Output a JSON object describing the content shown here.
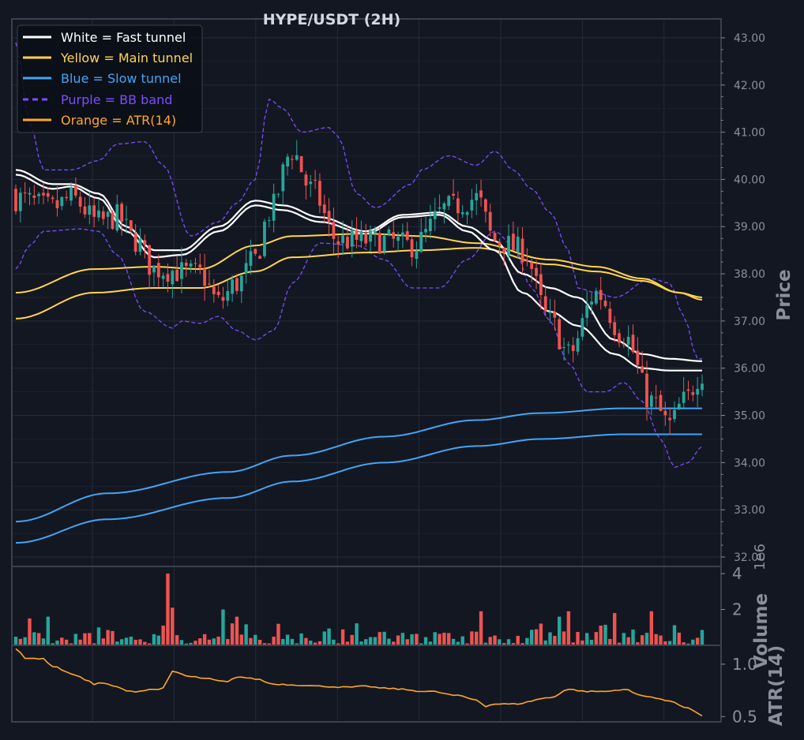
{
  "title": "HYPE/USDT (2H)",
  "colors": {
    "background": "#131722",
    "panel": "#131722",
    "grid": "#262b38",
    "axis_frame": "#3b4050",
    "tick_text": "#8a8f9c",
    "axis_label": "#8a8f9c",
    "title": "#d5d8e0",
    "up_candle": "#26a69a",
    "down_candle": "#ef5350",
    "fast": "#ffffff",
    "main": "#ffd54f",
    "slow": "#42a5f5",
    "bb": "#7c4dff",
    "atr": "#ffa726"
  },
  "legend": [
    {
      "label": "White = Fast tunnel",
      "color": "#ffffff",
      "style": "solid"
    },
    {
      "label": "Yellow = Main tunnel",
      "color": "#ffd54f",
      "style": "solid"
    },
    {
      "label": "Blue = Slow tunnel",
      "color": "#42a5f5",
      "style": "solid"
    },
    {
      "label": "Purple = BB band",
      "color": "#7c4dff",
      "style": "dashed"
    },
    {
      "label": "Orange = ATR(14)",
      "color": "#ffa726",
      "style": "solid"
    }
  ],
  "chart_data": {
    "type": "candlestick",
    "title": "HYPE/USDT (2H)",
    "legend_position": "top-left",
    "grid": true,
    "candle_count": 150,
    "price_panel": {
      "ylabel": "Price",
      "ylim": [
        31.8,
        43.4
      ],
      "ticks": [
        "32.00",
        "33.00",
        "34.00",
        "35.00",
        "36.00",
        "37.00",
        "38.00",
        "39.00",
        "40.00",
        "41.00",
        "42.00",
        "43.00"
      ],
      "close_anchors": [
        [
          0,
          39.6
        ],
        [
          8,
          39.4
        ],
        [
          12,
          39.6
        ],
        [
          18,
          39.1
        ],
        [
          22,
          39.2
        ],
        [
          26,
          38.7
        ],
        [
          30,
          38.1
        ],
        [
          40,
          38.0
        ],
        [
          44,
          37.4
        ],
        [
          48,
          37.8
        ],
        [
          52,
          38.3
        ],
        [
          55,
          39.3
        ],
        [
          60,
          40.6
        ],
        [
          64,
          39.8
        ],
        [
          70,
          38.7
        ],
        [
          80,
          38.7
        ],
        [
          86,
          38.6
        ],
        [
          94,
          39.4
        ],
        [
          100,
          39.6
        ],
        [
          104,
          38.7
        ],
        [
          110,
          38.5
        ],
        [
          116,
          37.0
        ],
        [
          120,
          36.3
        ],
        [
          126,
          37.6
        ],
        [
          132,
          36.7
        ],
        [
          138,
          35.3
        ],
        [
          142,
          34.8
        ],
        [
          145,
          35.3
        ],
        [
          149,
          35.9
        ]
      ],
      "fast_upper": [
        [
          0,
          40.2
        ],
        [
          8,
          39.9
        ],
        [
          12,
          39.9
        ],
        [
          18,
          39.7
        ],
        [
          24,
          39.0
        ],
        [
          30,
          38.5
        ],
        [
          36,
          38.5
        ],
        [
          44,
          39.0
        ],
        [
          52,
          39.55
        ],
        [
          58,
          39.45
        ],
        [
          66,
          39.2
        ],
        [
          76,
          38.9
        ],
        [
          84,
          39.25
        ],
        [
          92,
          39.3
        ],
        [
          98,
          39.0
        ],
        [
          104,
          38.7
        ],
        [
          110,
          38.0
        ],
        [
          116,
          37.7
        ],
        [
          122,
          37.5
        ],
        [
          130,
          36.6
        ],
        [
          136,
          36.3
        ],
        [
          142,
          36.2
        ],
        [
          149,
          36.15
        ]
      ],
      "fast_lower": [
        [
          0,
          40.1
        ],
        [
          8,
          39.8
        ],
        [
          12,
          39.85
        ],
        [
          18,
          39.6
        ],
        [
          24,
          38.9
        ],
        [
          30,
          38.35
        ],
        [
          36,
          38.4
        ],
        [
          44,
          38.9
        ],
        [
          52,
          39.45
        ],
        [
          58,
          39.35
        ],
        [
          66,
          39.1
        ],
        [
          76,
          38.85
        ],
        [
          84,
          39.2
        ],
        [
          92,
          39.25
        ],
        [
          98,
          38.9
        ],
        [
          104,
          38.5
        ],
        [
          110,
          37.6
        ],
        [
          116,
          37.2
        ],
        [
          122,
          36.9
        ],
        [
          130,
          36.3
        ],
        [
          136,
          36.0
        ],
        [
          142,
          35.95
        ],
        [
          149,
          35.95
        ]
      ],
      "main_upper": [
        [
          0,
          37.6
        ],
        [
          17,
          38.1
        ],
        [
          30,
          38.15
        ],
        [
          40,
          38.1
        ],
        [
          52,
          38.6
        ],
        [
          60,
          38.8
        ],
        [
          76,
          38.85
        ],
        [
          88,
          38.8
        ],
        [
          100,
          38.65
        ],
        [
          116,
          38.3
        ],
        [
          126,
          38.15
        ],
        [
          136,
          37.9
        ],
        [
          144,
          37.6
        ],
        [
          149,
          37.45
        ]
      ],
      "main_lower": [
        [
          0,
          37.05
        ],
        [
          17,
          37.6
        ],
        [
          30,
          37.7
        ],
        [
          40,
          37.7
        ],
        [
          52,
          38.05
        ],
        [
          60,
          38.35
        ],
        [
          76,
          38.45
        ],
        [
          88,
          38.5
        ],
        [
          100,
          38.55
        ],
        [
          116,
          38.2
        ],
        [
          126,
          38.05
        ],
        [
          136,
          37.85
        ],
        [
          144,
          37.6
        ],
        [
          149,
          37.5
        ]
      ],
      "slow_upper": [
        [
          0,
          32.75
        ],
        [
          20,
          33.35
        ],
        [
          46,
          33.8
        ],
        [
          60,
          34.15
        ],
        [
          80,
          34.55
        ],
        [
          100,
          34.9
        ],
        [
          114,
          35.05
        ],
        [
          132,
          35.15
        ],
        [
          149,
          35.15
        ]
      ],
      "slow_lower": [
        [
          0,
          32.3
        ],
        [
          20,
          32.8
        ],
        [
          46,
          33.25
        ],
        [
          60,
          33.6
        ],
        [
          80,
          34.0
        ],
        [
          100,
          34.35
        ],
        [
          114,
          34.5
        ],
        [
          132,
          34.6
        ],
        [
          149,
          34.6
        ]
      ],
      "bb_upper": [
        [
          0,
          42.9
        ],
        [
          3,
          41.2
        ],
        [
          6,
          40.2
        ],
        [
          12,
          40.2
        ],
        [
          18,
          40.4
        ],
        [
          22,
          40.75
        ],
        [
          28,
          40.8
        ],
        [
          32,
          40.3
        ],
        [
          38,
          38.8
        ],
        [
          44,
          39.1
        ],
        [
          48,
          39.5
        ],
        [
          52,
          40.0
        ],
        [
          55,
          41.7
        ],
        [
          58,
          41.5
        ],
        [
          62,
          41.0
        ],
        [
          68,
          41.1
        ],
        [
          70,
          40.9
        ],
        [
          74,
          39.7
        ],
        [
          78,
          39.4
        ],
        [
          86,
          39.9
        ],
        [
          88,
          40.2
        ],
        [
          94,
          40.5
        ],
        [
          100,
          40.3
        ],
        [
          104,
          40.6
        ],
        [
          108,
          40.2
        ],
        [
          112,
          39.8
        ],
        [
          116,
          39.3
        ],
        [
          120,
          38.5
        ],
        [
          122,
          37.7
        ],
        [
          126,
          37.6
        ],
        [
          130,
          37.5
        ],
        [
          138,
          37.9
        ],
        [
          142,
          37.8
        ],
        [
          145,
          37.1
        ],
        [
          148,
          36.2
        ],
        [
          149,
          36.2
        ]
      ],
      "bb_lower": [
        [
          0,
          38.1
        ],
        [
          3,
          38.6
        ],
        [
          6,
          38.9
        ],
        [
          14,
          38.95
        ],
        [
          18,
          38.9
        ],
        [
          22,
          38.4
        ],
        [
          28,
          37.2
        ],
        [
          34,
          36.85
        ],
        [
          36,
          37.0
        ],
        [
          40,
          36.95
        ],
        [
          44,
          37.1
        ],
        [
          48,
          36.8
        ],
        [
          52,
          36.6
        ],
        [
          56,
          36.8
        ],
        [
          60,
          37.8
        ],
        [
          66,
          38.65
        ],
        [
          74,
          38.6
        ],
        [
          80,
          38.3
        ],
        [
          86,
          37.7
        ],
        [
          92,
          37.7
        ],
        [
          98,
          38.3
        ],
        [
          104,
          38.9
        ],
        [
          108,
          38.6
        ],
        [
          112,
          37.7
        ],
        [
          116,
          37.0
        ],
        [
          120,
          36.1
        ],
        [
          124,
          35.5
        ],
        [
          128,
          35.5
        ],
        [
          132,
          35.7
        ],
        [
          136,
          35.3
        ],
        [
          140,
          34.5
        ],
        [
          143,
          33.9
        ],
        [
          146,
          34.0
        ],
        [
          149,
          34.35
        ]
      ]
    },
    "volume_panel": {
      "ylabel": "Volume",
      "scale_label": "1e6",
      "ylim": [
        0,
        4.4
      ],
      "ticks": [
        "2",
        "4"
      ],
      "baseline": 0.1,
      "spikes": [
        [
          33,
          4.0
        ],
        [
          34,
          2.1
        ],
        [
          45,
          2.0
        ],
        [
          48,
          1.6
        ],
        [
          101,
          1.9
        ],
        [
          120,
          1.9
        ],
        [
          130,
          1.8
        ],
        [
          138,
          1.9
        ],
        [
          118,
          1.6
        ],
        [
          7,
          1.6
        ],
        [
          3,
          1.5
        ]
      ]
    },
    "atr_panel": {
      "ylabel": "ATR(14)",
      "ylim": [
        0.45,
        1.18
      ],
      "ticks": [
        "0.5",
        "1.0"
      ],
      "anchors": [
        [
          0,
          1.15
        ],
        [
          2,
          1.06
        ],
        [
          6,
          1.05
        ],
        [
          8,
          0.98
        ],
        [
          12,
          0.91
        ],
        [
          16,
          0.84
        ],
        [
          17,
          0.8
        ],
        [
          18,
          0.82
        ],
        [
          26,
          0.74
        ],
        [
          30,
          0.76
        ],
        [
          32,
          0.77
        ],
        [
          34,
          0.93
        ],
        [
          38,
          0.88
        ],
        [
          42,
          0.86
        ],
        [
          44,
          0.84
        ],
        [
          46,
          0.83
        ],
        [
          48,
          0.88
        ],
        [
          52,
          0.86
        ],
        [
          56,
          0.81
        ],
        [
          62,
          0.8
        ],
        [
          66,
          0.79
        ],
        [
          72,
          0.78
        ],
        [
          76,
          0.79
        ],
        [
          80,
          0.77
        ],
        [
          90,
          0.74
        ],
        [
          96,
          0.7
        ],
        [
          100,
          0.66
        ],
        [
          102,
          0.6
        ],
        [
          104,
          0.62
        ],
        [
          108,
          0.62
        ],
        [
          116,
          0.68
        ],
        [
          120,
          0.76
        ],
        [
          124,
          0.74
        ],
        [
          128,
          0.74
        ],
        [
          132,
          0.76
        ],
        [
          136,
          0.7
        ],
        [
          142,
          0.65
        ],
        [
          146,
          0.58
        ],
        [
          149,
          0.51
        ]
      ]
    }
  }
}
